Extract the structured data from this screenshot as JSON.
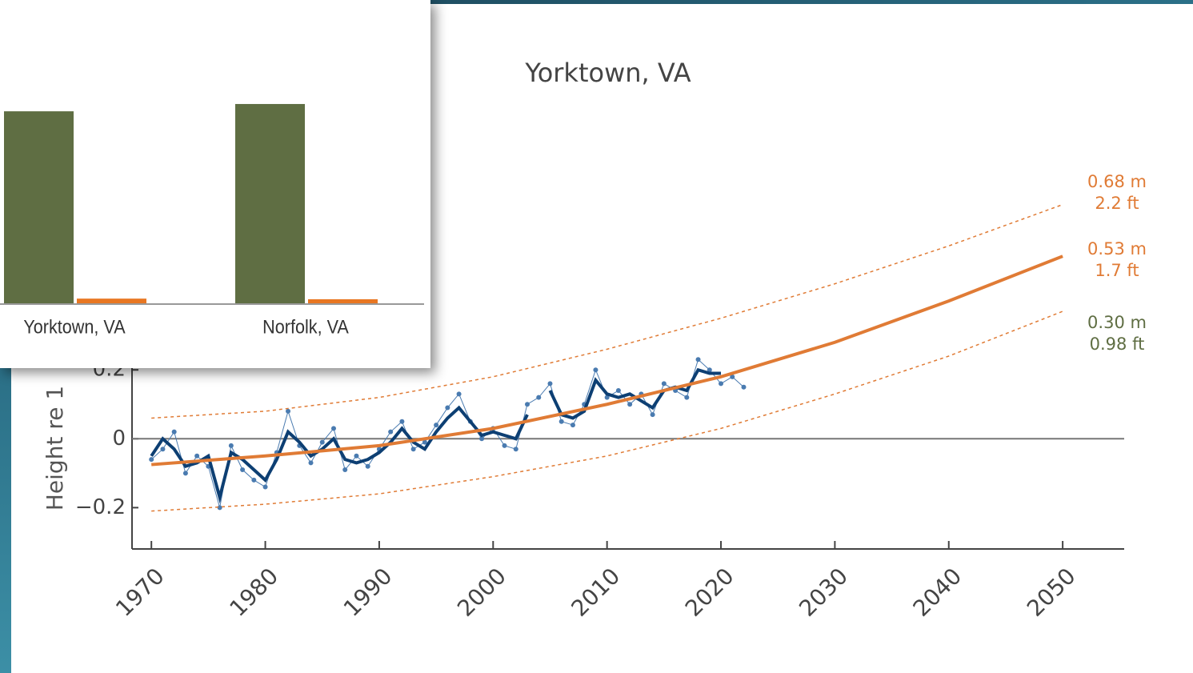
{
  "chart_data": [
    {
      "type": "line",
      "title": "Yorktown, VA",
      "ylabel": "Height re 1",
      "xlim": [
        1968.3,
        2055.4
      ],
      "ylim": [
        -0.32,
        0.8
      ],
      "xticks": [
        1970,
        1980,
        1990,
        2000,
        2010,
        2020,
        2030,
        2040,
        2050
      ],
      "yticks": [
        {
          "value": -0.2,
          "label": "−0.2"
        },
        0,
        0.2
      ],
      "zero_line": true,
      "series": [
        {
          "color": "#4a7bb0",
          "style": "points",
          "x": [
            1970,
            1971,
            1972,
            1973,
            1974,
            1975,
            1976,
            1977,
            1978,
            1979,
            1980,
            1981,
            1982,
            1983,
            1984,
            1985,
            1986,
            1987,
            1988,
            1989,
            1990,
            1991,
            1992,
            1993,
            1994,
            1995,
            1996,
            1997,
            1998,
            1999,
            2000,
            2001,
            2002,
            2003,
            2004,
            2005,
            2006,
            2007,
            2008,
            2009,
            2010,
            2011,
            2012,
            2013,
            2014,
            2015,
            2016,
            2017,
            2018,
            2019,
            2020,
            2021,
            2022
          ],
          "values": [
            -0.06,
            -0.03,
            0.02,
            -0.1,
            -0.05,
            -0.08,
            -0.2,
            -0.02,
            -0.09,
            -0.12,
            -0.14,
            -0.04,
            0.08,
            -0.02,
            -0.07,
            -0.01,
            0.03,
            -0.09,
            -0.05,
            -0.08,
            -0.03,
            0.02,
            0.05,
            -0.03,
            -0.01,
            0.04,
            0.09,
            0.13,
            0.05,
            0.0,
            0.03,
            -0.02,
            -0.03,
            0.1,
            0.12,
            0.16,
            0.05,
            0.04,
            0.1,
            0.2,
            0.12,
            0.14,
            0.1,
            0.13,
            0.07,
            0.16,
            0.14,
            0.12,
            0.23,
            0.2,
            0.16,
            0.18,
            0.15
          ]
        },
        {
          "color": "#0d3f73",
          "style": "solid",
          "width": 4,
          "x": [
            1970,
            1971,
            1972,
            1973,
            1974,
            1975,
            1976,
            1977,
            1978,
            1979,
            1980,
            1981,
            1982,
            1983,
            1984,
            1985,
            1986,
            1987,
            1988,
            1989,
            1990,
            1991,
            1992,
            1993,
            1994,
            1995,
            1996,
            1997,
            1998,
            1999,
            2000,
            2001,
            2002,
            2003,
            2004,
            2005,
            2006,
            2007,
            2008,
            2009,
            2010,
            2011,
            2012,
            2013,
            2014,
            2015,
            2016,
            2017,
            2018,
            2019,
            2020
          ],
          "values": [
            -0.05,
            0.0,
            -0.03,
            -0.08,
            -0.07,
            -0.05,
            -0.17,
            -0.04,
            -0.06,
            -0.09,
            -0.12,
            -0.06,
            0.02,
            -0.01,
            -0.05,
            -0.03,
            0.0,
            -0.06,
            -0.07,
            -0.06,
            -0.04,
            -0.01,
            0.03,
            -0.01,
            -0.03,
            0.02,
            0.06,
            0.09,
            0.05,
            0.01,
            0.02,
            0.01,
            0.0,
            0.07,
            null,
            0.14,
            0.07,
            0.06,
            0.08,
            0.17,
            0.13,
            0.12,
            0.13,
            0.11,
            0.09,
            0.14,
            0.15,
            0.14,
            0.2,
            0.19,
            0.19
          ]
        },
        {
          "color": "#e07b35",
          "style": "solid",
          "width": 4,
          "x": [
            1970,
            1980,
            1990,
            2000,
            2010,
            2020,
            2030,
            2040,
            2050
          ],
          "values": [
            -0.075,
            -0.05,
            -0.02,
            0.03,
            0.1,
            0.18,
            0.28,
            0.4,
            0.53
          ]
        },
        {
          "color": "#e07b35",
          "style": "dashed",
          "width": 1.5,
          "x": [
            1970,
            1980,
            1990,
            2000,
            2010,
            2020,
            2030,
            2040,
            2050
          ],
          "values": [
            0.06,
            0.08,
            0.12,
            0.18,
            0.26,
            0.35,
            0.45,
            0.56,
            0.68
          ]
        },
        {
          "color": "#e07b35",
          "style": "dashed",
          "width": 1.5,
          "x": [
            1970,
            1980,
            1990,
            2000,
            2010,
            2020,
            2030,
            2040,
            2050
          ],
          "values": [
            -0.21,
            -0.19,
            -0.16,
            -0.11,
            -0.05,
            0.03,
            0.13,
            0.24,
            0.37
          ]
        }
      ],
      "annotations": [
        {
          "lines": [
            "0.68 m",
            "2.2 ft"
          ],
          "color": "#e07b35"
        },
        {
          "lines": [
            "0.53 m",
            "1.7 ft"
          ],
          "color": "#e07b35"
        },
        {
          "lines": [
            "0.30 m",
            "0.98 ft"
          ],
          "color": "#5f6e43"
        }
      ]
    },
    {
      "type": "bar",
      "categories": [
        "Yorktown, VA",
        "Norfolk, VA"
      ],
      "ylim": [
        0,
        4
      ],
      "series": [
        {
          "color": "#5f6e43",
          "values": [
            3.17,
            3.29
          ]
        },
        {
          "color": "#e87722",
          "values": [
            0.09,
            0.08
          ]
        }
      ]
    }
  ]
}
